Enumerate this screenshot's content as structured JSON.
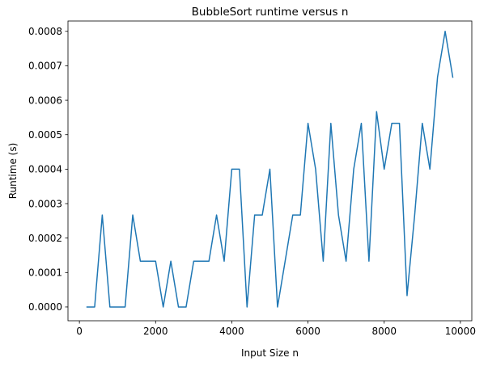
{
  "chart_data": {
    "type": "line",
    "title": "BubbleSort runtime versus n",
    "xlabel": "Input Size n",
    "ylabel": "Runtime (s)",
    "xlim": [
      -300,
      10300
    ],
    "ylim": [
      -4e-05,
      0.00083
    ],
    "xticks": [
      0,
      2000,
      4000,
      6000,
      8000,
      10000
    ],
    "xtick_labels": [
      "0",
      "2000",
      "4000",
      "6000",
      "8000",
      "10000"
    ],
    "yticks": [
      0,
      0.0001,
      0.0002,
      0.0003,
      0.0004,
      0.0005,
      0.0006,
      0.0007,
      0.0008
    ],
    "ytick_labels": [
      "0.0000",
      "0.0001",
      "0.0002",
      "0.0003",
      "0.0004",
      "0.0005",
      "0.0006",
      "0.0007",
      "0.0008"
    ],
    "grid": false,
    "series": [
      {
        "color": "#1f77b4",
        "x": [
          200,
          400,
          600,
          800,
          1000,
          1200,
          1400,
          1600,
          1800,
          2000,
          2200,
          2400,
          2600,
          2800,
          3000,
          3200,
          3400,
          3600,
          3800,
          4000,
          4200,
          4400,
          4600,
          4800,
          5000,
          5200,
          5400,
          5600,
          5800,
          6000,
          6200,
          6400,
          6600,
          6800,
          7000,
          7200,
          7400,
          7600,
          7800,
          8000,
          8200,
          8400,
          8600,
          8800,
          9000,
          9200,
          9400,
          9600,
          9800
        ],
        "y": [
          0.0,
          0.0,
          0.000267,
          0.0,
          0.0,
          0.0,
          0.000267,
          0.000133,
          0.000133,
          0.000133,
          0.0,
          0.000133,
          0.0,
          0.0,
          0.000133,
          0.000133,
          0.000133,
          0.000267,
          0.000133,
          0.0004,
          0.0004,
          0.0,
          0.000267,
          0.000267,
          0.0004,
          0.0,
          0.000133,
          0.000267,
          0.000267,
          0.000533,
          0.0004,
          0.000133,
          0.000533,
          0.000267,
          0.000133,
          0.0004,
          0.000533,
          0.000133,
          0.000567,
          0.0004,
          0.000533,
          0.000533,
          3.3e-05,
          0.000267,
          0.000533,
          0.0004,
          0.000667,
          0.0008,
          0.000667
        ]
      }
    ]
  }
}
